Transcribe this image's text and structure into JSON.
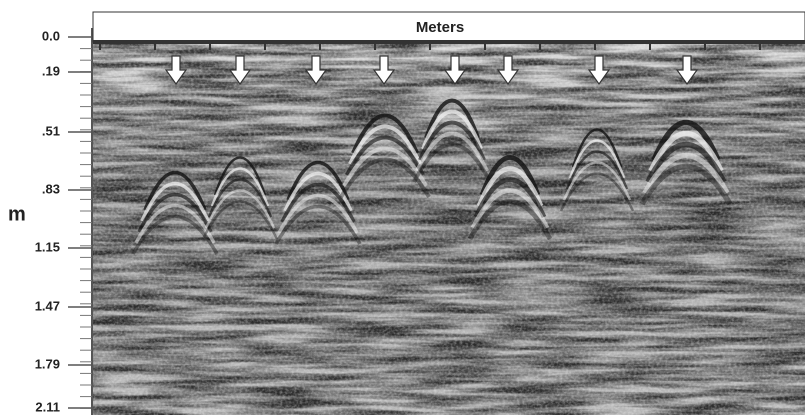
{
  "header": {
    "title": "Meters"
  },
  "depth_axis": {
    "unit": "m",
    "ticks": [
      "0.0",
      ".19",
      ".51",
      ".83",
      "1.15",
      "1.47",
      "1.79",
      "2.11"
    ]
  }
}
